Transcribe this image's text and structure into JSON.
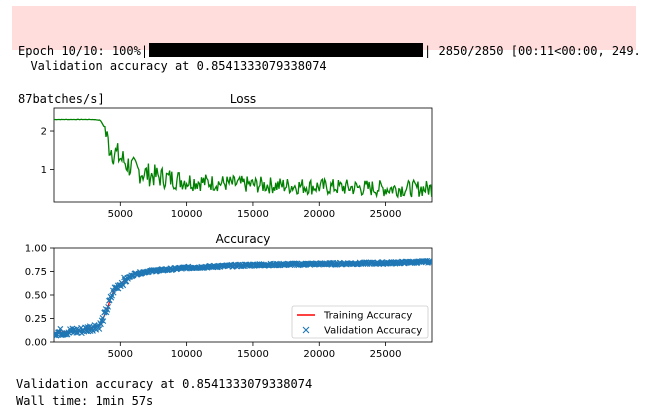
{
  "progress": {
    "label": "Epoch 10/10: 100%|",
    "fraction": 1.0,
    "counts": "| 2850/2850 [00:11<00:00, 249.",
    "rate": "87batches/s]"
  },
  "output": {
    "val_line_1": "  Validation accuracy at 0.8541333079338074",
    "val_line_2": "Validation accuracy at 0.8541333079338074",
    "wall_time": "Wall time: 1min 57s"
  },
  "chart_data": [
    {
      "type": "line",
      "title": "Loss",
      "xlim": [
        1,
        28500
      ],
      "ylim": [
        0.15,
        2.6
      ],
      "xticks": [
        5000,
        10000,
        15000,
        20000,
        25000
      ],
      "yticks": [
        1,
        2
      ],
      "ytick_labels": [
        "1",
        "2"
      ],
      "series": [
        {
          "color": "#008000",
          "x": [
            1,
            1000,
            2000,
            3000,
            3500,
            3800,
            4000,
            4200,
            4500,
            5000,
            5500,
            6000,
            7000,
            8000,
            10000,
            12000,
            15000,
            20000,
            25000,
            28500
          ],
          "y": [
            2.3,
            2.3,
            2.3,
            2.3,
            2.28,
            2.1,
            1.8,
            1.6,
            1.45,
            1.3,
            1.15,
            1.0,
            0.88,
            0.8,
            0.7,
            0.65,
            0.6,
            0.55,
            0.5,
            0.5
          ]
        }
      ]
    },
    {
      "type": "line",
      "title": "Accuracy",
      "xlim": [
        1,
        28500
      ],
      "ylim": [
        0,
        1
      ],
      "xticks": [
        5000,
        10000,
        15000,
        20000,
        25000
      ],
      "yticks": [
        0,
        0.25,
        0.5,
        0.75,
        1.0
      ],
      "ytick_labels": [
        "0.00",
        "0.25",
        "0.50",
        "0.75",
        "1.00"
      ],
      "legend": "lower-right",
      "series": [
        {
          "name": "Training Accuracy",
          "color": "#ff0000",
          "x": [
            1,
            2000,
            3500,
            4000,
            4500,
            5000,
            6000,
            7000,
            10000,
            15000,
            20000,
            25000,
            28500
          ],
          "y": [
            0.1,
            0.12,
            0.18,
            0.35,
            0.55,
            0.62,
            0.72,
            0.75,
            0.79,
            0.82,
            0.83,
            0.84,
            0.85
          ]
        },
        {
          "name": "Validation Accuracy",
          "color": "#1f77b4",
          "marker": "x",
          "x": [
            1,
            2000,
            3500,
            4000,
            4500,
            5000,
            6000,
            7000,
            10000,
            15000,
            20000,
            25000,
            28500
          ],
          "y": [
            0.1,
            0.12,
            0.18,
            0.35,
            0.55,
            0.62,
            0.72,
            0.75,
            0.79,
            0.82,
            0.83,
            0.84,
            0.8541333079338074
          ]
        }
      ]
    }
  ]
}
